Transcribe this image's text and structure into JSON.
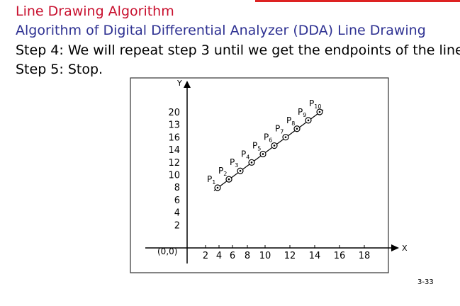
{
  "header": {
    "title": "Line Drawing Algorithm",
    "subtitle": "Algorithm of Digital Differential Analyzer (DDA) Line Drawing"
  },
  "steps": [
    "Step 4: We will repeat step 3 until we get the endpoints of the line.",
    "Step 5: Stop."
  ],
  "figure": {
    "y_axis_label": "Y",
    "x_axis_label": "X",
    "origin_label": "(0,0)",
    "y_labels": [
      20,
      13,
      16,
      14,
      12,
      10,
      8,
      6,
      4,
      2
    ],
    "x_labels": [
      2,
      4,
      6,
      8,
      10,
      12,
      14,
      16,
      18
    ],
    "points": [
      {
        "letter": "P",
        "sub": "1"
      },
      {
        "letter": "P",
        "sub": "2"
      },
      {
        "letter": "P",
        "sub": "3"
      },
      {
        "letter": "P",
        "sub": "4"
      },
      {
        "letter": "P",
        "sub": "5"
      },
      {
        "letter": "P",
        "sub": "6"
      },
      {
        "letter": "P",
        "sub": "7"
      },
      {
        "letter": "P",
        "sub": "8"
      },
      {
        "letter": "P",
        "sub": "9"
      },
      {
        "letter": "P",
        "sub": "10"
      }
    ]
  },
  "page_number": "3-33"
}
